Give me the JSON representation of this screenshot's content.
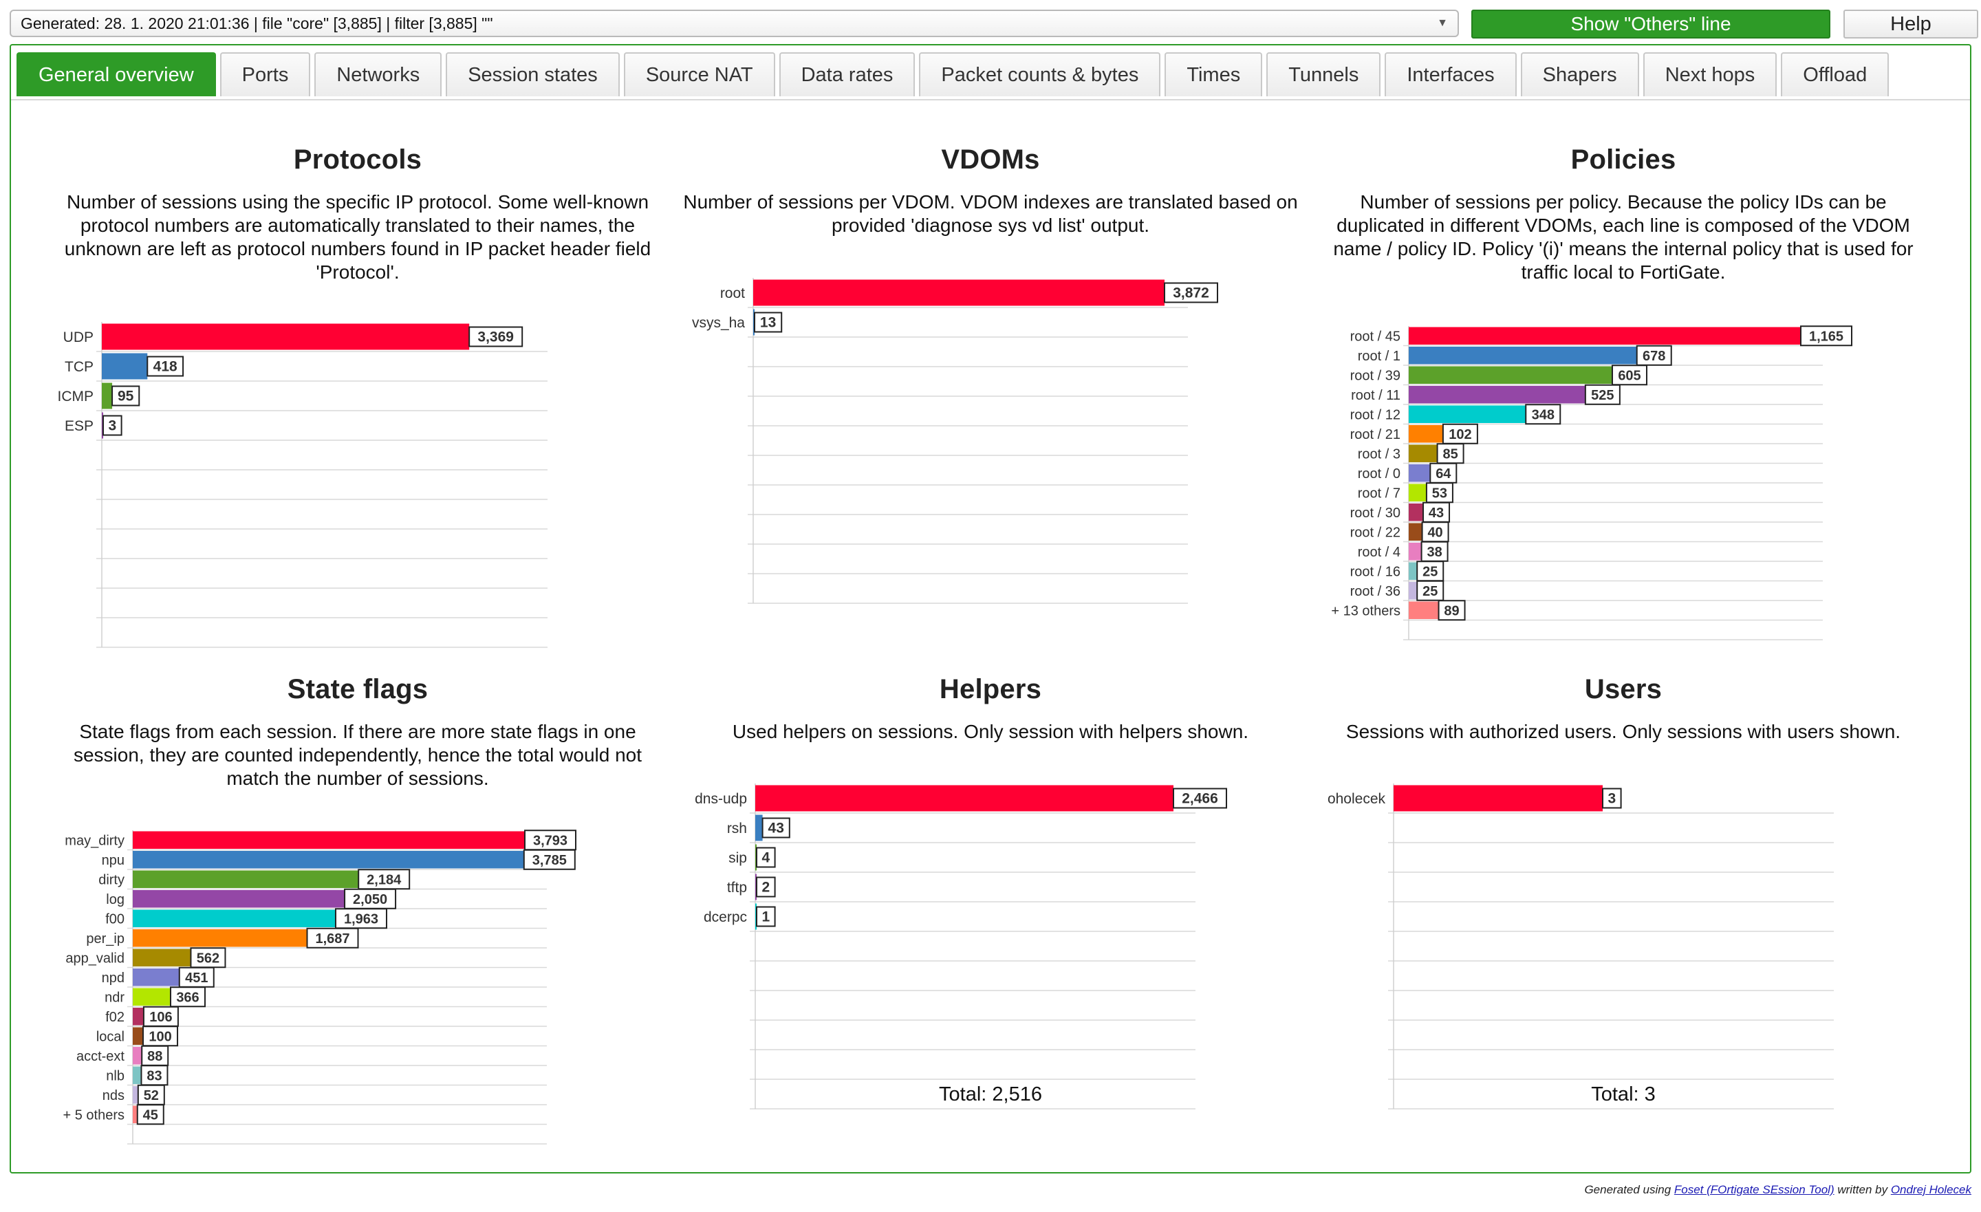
{
  "topbar": {
    "generated": "Generated: 28. 1. 2020 21:01:36 | file \"core\" [3,885] | filter [3,885] \"\"",
    "others_button": "Show \"Others\" line",
    "help_button": "Help"
  },
  "tabs": [
    {
      "label": "General overview",
      "active": true
    },
    {
      "label": "Ports"
    },
    {
      "label": "Networks"
    },
    {
      "label": "Session states"
    },
    {
      "label": "Source NAT"
    },
    {
      "label": "Data rates"
    },
    {
      "label": "Packet counts & bytes"
    },
    {
      "label": "Times"
    },
    {
      "label": "Tunnels"
    },
    {
      "label": "Interfaces"
    },
    {
      "label": "Shapers"
    },
    {
      "label": "Next hops"
    },
    {
      "label": "Offload"
    }
  ],
  "palette": [
    "#ff0033",
    "#3a7fc1",
    "#5ca12a",
    "#9447a6",
    "#00cccc",
    "#ff8000",
    "#a68a00",
    "#7a7ecf",
    "#b3e600",
    "#b3305f",
    "#994c1a",
    "#e87ec0",
    "#7dc4c4",
    "#c4b7df",
    "#ff7f7f"
  ],
  "chart_data": [
    {
      "id": "protocols",
      "type": "bar",
      "orientation": "horizontal",
      "title": "Protocols",
      "description": "Number of sessions using the specific IP protocol. Some well-known protocol numbers are automatically translated to their names, the unknown are left as protocol numbers found in IP packet header field 'Protocol'.",
      "categories": [
        "UDP",
        "TCP",
        "ICMP",
        "ESP"
      ],
      "values": [
        3369,
        418,
        95,
        3
      ],
      "value_labels": [
        "3,369",
        "418",
        "95",
        "3"
      ],
      "xlim": [
        0,
        3885
      ]
    },
    {
      "id": "vdoms",
      "type": "bar",
      "orientation": "horizontal",
      "title": "VDOMs",
      "description": "Number of sessions per VDOM. VDOM indexes are translated based on provided 'diagnose sys vd list' output.",
      "categories": [
        "root",
        "vsys_ha"
      ],
      "values": [
        3872,
        13
      ],
      "value_labels": [
        "3,872",
        "13"
      ],
      "xlim": [
        0,
        3885
      ]
    },
    {
      "id": "policies",
      "type": "bar",
      "orientation": "horizontal",
      "title": "Policies",
      "description": "Number of sessions per policy. Because the policy IDs can be duplicated in different VDOMs, each line is composed of the VDOM name / policy ID. Policy '(i)' means the internal policy that is used for traffic local to FortiGate.",
      "categories": [
        "root / 45",
        "root / 1",
        "root / 39",
        "root / 11",
        "root / 12",
        "root / 21",
        "root / 3",
        "root / 0",
        "root / 7",
        "root / 30",
        "root / 22",
        "root / 4",
        "root / 16",
        "root / 36",
        "+ 13 others"
      ],
      "values": [
        1165,
        678,
        605,
        525,
        348,
        102,
        85,
        64,
        53,
        43,
        40,
        38,
        25,
        25,
        89
      ],
      "value_labels": [
        "1,165",
        "678",
        "605",
        "525",
        "348",
        "102",
        "85",
        "64",
        "53",
        "43",
        "40",
        "38",
        "25",
        "25",
        "89"
      ],
      "xlim": [
        0,
        1165
      ]
    },
    {
      "id": "state_flags",
      "type": "bar",
      "orientation": "horizontal",
      "title": "State flags",
      "description": "State flags from each session. If there are more state flags in one session, they are counted independently, hence the total would not match the number of sessions.",
      "categories": [
        "may_dirty",
        "npu",
        "dirty",
        "log",
        "f00",
        "per_ip",
        "app_valid",
        "npd",
        "ndr",
        "f02",
        "local",
        "acct-ext",
        "nlb",
        "nds",
        "+ 5 others"
      ],
      "values": [
        3793,
        3785,
        2184,
        2050,
        1963,
        1687,
        562,
        451,
        366,
        106,
        100,
        88,
        83,
        52,
        45
      ],
      "value_labels": [
        "3,793",
        "3,785",
        "2,184",
        "2,050",
        "1,963",
        "1,687",
        "562",
        "451",
        "366",
        "106",
        "100",
        "88",
        "83",
        "52",
        "45"
      ],
      "xlim": [
        0,
        3793
      ]
    },
    {
      "id": "helpers",
      "type": "bar",
      "orientation": "horizontal",
      "title": "Helpers",
      "description": "Used helpers on sessions. Only session with helpers shown.",
      "categories": [
        "dns-udp",
        "rsh",
        "sip",
        "tftp",
        "dcerpc"
      ],
      "values": [
        2466,
        43,
        4,
        2,
        1
      ],
      "value_labels": [
        "2,466",
        "43",
        "4",
        "2",
        "1"
      ],
      "xlim": [
        0,
        2466
      ],
      "total": "Total: 2,516"
    },
    {
      "id": "users",
      "type": "bar",
      "orientation": "horizontal",
      "title": "Users",
      "description": "Sessions with authorized users. Only sessions with users shown.",
      "categories": [
        "oholecek"
      ],
      "values": [
        3
      ],
      "value_labels": [
        "3"
      ],
      "xlim": [
        0,
        6
      ],
      "total": "Total: 3"
    }
  ],
  "footer": {
    "prefix": "Generated using ",
    "tool_link": "Foset (FOrtigate SEssion Tool)",
    "middle": " written by ",
    "author_link": "Ondrej Holecek"
  }
}
